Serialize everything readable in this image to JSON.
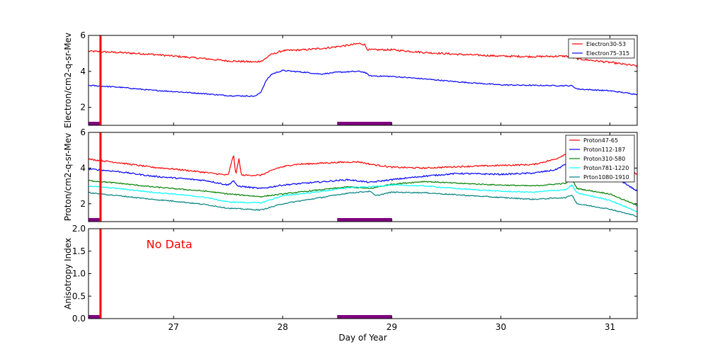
{
  "colors": {
    "red": "#ff0000",
    "blue": "#0000ff",
    "green": "#008000",
    "cyan": "#00ffff",
    "teal": "#008080",
    "purple": "#800080",
    "nodata": "#ff0000"
  },
  "chart_data": [
    {
      "type": "line",
      "id": "electron",
      "title": "",
      "xlabel": "",
      "ylabel": "Electron/cm2-q-sr-Mev",
      "xlim": [
        26.22,
        31.25
      ],
      "ylim": [
        1,
        6
      ],
      "yticks": [
        2,
        4,
        6
      ],
      "xticks": [
        27,
        28,
        29,
        30,
        31
      ],
      "legend": "top-right",
      "marker_day": 26.33,
      "bars": [
        [
          26.22,
          26.33
        ],
        [
          28.5,
          29.0
        ]
      ],
      "series": [
        {
          "name": "Electron30-53",
          "color": "red",
          "points": [
            [
              26.22,
              5.12
            ],
            [
              26.5,
              5.05
            ],
            [
              26.8,
              4.95
            ],
            [
              27.0,
              4.85
            ],
            [
              27.3,
              4.7
            ],
            [
              27.5,
              4.58
            ],
            [
              27.75,
              4.52
            ],
            [
              27.82,
              4.6
            ],
            [
              27.88,
              4.9
            ],
            [
              28.0,
              5.15
            ],
            [
              28.2,
              5.2
            ],
            [
              28.4,
              5.3
            ],
            [
              28.6,
              5.45
            ],
            [
              28.7,
              5.55
            ],
            [
              28.75,
              5.5
            ],
            [
              28.78,
              5.2
            ],
            [
              29.0,
              5.2
            ],
            [
              29.3,
              5.05
            ],
            [
              29.6,
              4.95
            ],
            [
              30.0,
              4.85
            ],
            [
              30.3,
              4.82
            ],
            [
              30.6,
              4.85
            ],
            [
              30.7,
              4.7
            ],
            [
              31.0,
              4.5
            ],
            [
              31.25,
              4.3
            ]
          ],
          "noise": 0.05
        },
        {
          "name": "Electron75-315",
          "color": "blue",
          "points": [
            [
              26.22,
              3.22
            ],
            [
              26.5,
              3.12
            ],
            [
              26.8,
              2.95
            ],
            [
              27.0,
              2.88
            ],
            [
              27.3,
              2.75
            ],
            [
              27.5,
              2.65
            ],
            [
              27.75,
              2.62
            ],
            [
              27.8,
              2.85
            ],
            [
              27.85,
              3.5
            ],
            [
              27.9,
              3.85
            ],
            [
              28.0,
              4.05
            ],
            [
              28.2,
              3.95
            ],
            [
              28.35,
              3.85
            ],
            [
              28.5,
              3.95
            ],
            [
              28.7,
              4.0
            ],
            [
              28.75,
              3.95
            ],
            [
              28.8,
              3.75
            ],
            [
              29.0,
              3.72
            ],
            [
              29.3,
              3.58
            ],
            [
              29.6,
              3.42
            ],
            [
              30.0,
              3.25
            ],
            [
              30.3,
              3.22
            ],
            [
              30.65,
              3.2
            ],
            [
              30.7,
              3.02
            ],
            [
              31.0,
              2.92
            ],
            [
              31.25,
              2.72
            ]
          ],
          "noise": 0.03
        }
      ]
    },
    {
      "type": "line",
      "id": "proton",
      "title": "",
      "xlabel": "",
      "ylabel": "Proton/cm2-q-sr-Mev",
      "xlim": [
        26.22,
        31.25
      ],
      "ylim": [
        1,
        6
      ],
      "yticks": [
        2,
        4,
        6
      ],
      "xticks": [
        27,
        28,
        29,
        30,
        31
      ],
      "legend": "top-right",
      "marker_day": 26.33,
      "bars": [
        [
          26.22,
          26.33
        ],
        [
          28.5,
          29.0
        ]
      ],
      "series": [
        {
          "name": "Proton47-65",
          "color": "red",
          "points": [
            [
              26.22,
              4.5
            ],
            [
              26.5,
              4.3
            ],
            [
              26.8,
              4.05
            ],
            [
              27.0,
              3.95
            ],
            [
              27.3,
              3.75
            ],
            [
              27.5,
              3.6
            ],
            [
              27.55,
              4.75
            ],
            [
              27.57,
              3.6
            ],
            [
              27.6,
              4.55
            ],
            [
              27.62,
              3.6
            ],
            [
              27.8,
              3.6
            ],
            [
              27.95,
              4.0
            ],
            [
              28.1,
              4.2
            ],
            [
              28.5,
              4.32
            ],
            [
              28.7,
              4.35
            ],
            [
              28.8,
              4.22
            ],
            [
              29.0,
              4.05
            ],
            [
              29.3,
              4.0
            ],
            [
              29.6,
              4.08
            ],
            [
              30.0,
              4.15
            ],
            [
              30.3,
              4.2
            ],
            [
              30.5,
              4.5
            ],
            [
              30.6,
              4.8
            ],
            [
              30.65,
              5.0
            ],
            [
              30.7,
              4.75
            ],
            [
              30.9,
              4.55
            ],
            [
              31.1,
              4.2
            ],
            [
              31.25,
              3.65
            ]
          ],
          "noise": 0.04
        },
        {
          "name": "Proton112-187",
          "color": "blue",
          "points": [
            [
              26.22,
              3.95
            ],
            [
              26.5,
              3.8
            ],
            [
              26.8,
              3.55
            ],
            [
              27.0,
              3.45
            ],
            [
              27.3,
              3.3
            ],
            [
              27.5,
              3.05
            ],
            [
              27.55,
              3.3
            ],
            [
              27.58,
              3.0
            ],
            [
              27.8,
              2.85
            ],
            [
              28.0,
              3.05
            ],
            [
              28.3,
              3.2
            ],
            [
              28.6,
              3.35
            ],
            [
              28.8,
              3.2
            ],
            [
              29.0,
              3.35
            ],
            [
              29.3,
              3.55
            ],
            [
              29.6,
              3.7
            ],
            [
              30.0,
              3.65
            ],
            [
              30.3,
              3.72
            ],
            [
              30.5,
              3.9
            ],
            [
              30.62,
              4.3
            ],
            [
              30.65,
              4.5
            ],
            [
              30.7,
              3.85
            ],
            [
              30.9,
              3.6
            ],
            [
              31.1,
              3.3
            ],
            [
              31.25,
              2.7
            ]
          ],
          "noise": 0.04
        },
        {
          "name": "Proton310-580",
          "color": "green",
          "points": [
            [
              26.22,
              3.3
            ],
            [
              26.5,
              3.15
            ],
            [
              26.8,
              2.95
            ],
            [
              27.0,
              2.85
            ],
            [
              27.3,
              2.7
            ],
            [
              27.5,
              2.55
            ],
            [
              27.8,
              2.4
            ],
            [
              28.0,
              2.55
            ],
            [
              28.3,
              2.75
            ],
            [
              28.6,
              2.95
            ],
            [
              28.8,
              2.85
            ],
            [
              29.0,
              3.1
            ],
            [
              29.3,
              3.25
            ],
            [
              29.6,
              3.15
            ],
            [
              30.0,
              3.05
            ],
            [
              30.3,
              3.0
            ],
            [
              30.6,
              3.15
            ],
            [
              30.65,
              3.4
            ],
            [
              30.7,
              2.85
            ],
            [
              31.0,
              2.55
            ],
            [
              31.25,
              1.9
            ]
          ],
          "noise": 0.03
        },
        {
          "name": "Proton781-1220",
          "color": "cyan",
          "points": [
            [
              26.22,
              3.0
            ],
            [
              26.5,
              2.85
            ],
            [
              26.8,
              2.65
            ],
            [
              27.0,
              2.55
            ],
            [
              27.3,
              2.35
            ],
            [
              27.5,
              2.1
            ],
            [
              27.8,
              2.05
            ],
            [
              28.0,
              2.45
            ],
            [
              28.3,
              2.65
            ],
            [
              28.6,
              2.9
            ],
            [
              28.8,
              2.95
            ],
            [
              29.0,
              3.05
            ],
            [
              29.3,
              3.0
            ],
            [
              29.6,
              2.85
            ],
            [
              30.0,
              2.7
            ],
            [
              30.3,
              2.65
            ],
            [
              30.6,
              2.8
            ],
            [
              30.65,
              3.05
            ],
            [
              30.7,
              2.6
            ],
            [
              31.0,
              2.2
            ],
            [
              31.25,
              1.55
            ]
          ],
          "noise": 0.03
        },
        {
          "name": "Prton1080-1910",
          "color": "teal",
          "points": [
            [
              26.22,
              2.62
            ],
            [
              26.5,
              2.45
            ],
            [
              26.8,
              2.25
            ],
            [
              27.0,
              2.15
            ],
            [
              27.3,
              1.95
            ],
            [
              27.5,
              1.75
            ],
            [
              27.8,
              1.65
            ],
            [
              28.0,
              2.0
            ],
            [
              28.3,
              2.3
            ],
            [
              28.6,
              2.6
            ],
            [
              28.8,
              2.7
            ],
            [
              28.85,
              2.45
            ],
            [
              29.0,
              2.65
            ],
            [
              29.3,
              2.62
            ],
            [
              29.6,
              2.5
            ],
            [
              30.0,
              2.35
            ],
            [
              30.3,
              2.25
            ],
            [
              30.6,
              2.35
            ],
            [
              30.65,
              2.5
            ],
            [
              30.7,
              2.0
            ],
            [
              31.0,
              1.7
            ],
            [
              31.25,
              1.3
            ]
          ],
          "noise": 0.03
        }
      ]
    },
    {
      "type": "line",
      "id": "anisotropy",
      "title": "",
      "xlabel": "Day of Year",
      "ylabel": "Anisotropy Index",
      "xlim": [
        26.22,
        31.25
      ],
      "ylim": [
        0,
        2.0
      ],
      "yticks": [
        0.0,
        0.5,
        1.0,
        1.5,
        2.0
      ],
      "ytick_labels": [
        "0.0",
        "0.5",
        "1.0",
        "1.5",
        "2.0"
      ],
      "xticks": [
        27,
        28,
        29,
        30,
        31
      ],
      "xtick_labels": [
        "27",
        "28",
        "29",
        "30",
        "31"
      ],
      "annotation": "No Data",
      "annotation_pos": [
        26.75,
        1.57
      ],
      "marker_day": 26.33,
      "bars": [
        [
          26.22,
          26.33
        ],
        [
          28.5,
          29.0
        ]
      ],
      "series": []
    }
  ]
}
